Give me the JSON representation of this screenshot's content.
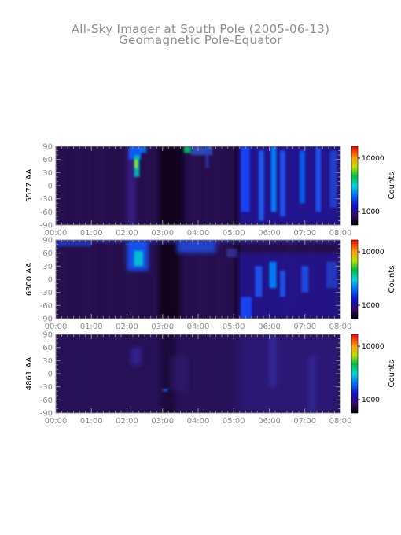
{
  "title": "All-Sky Imager at South Pole (2005-06-13)",
  "subtitle": "Geomagnetic Pole-Equator",
  "colors": {
    "background": "#2a1052",
    "text": "#8c8c8c"
  },
  "chart_data": [
    {
      "type": "heatmap",
      "ylabel": "5577 AA",
      "x_ticks": [
        "00:00",
        "01:00",
        "02:00",
        "03:00",
        "04:00",
        "05:00",
        "06:00",
        "07:00",
        "08:00"
      ],
      "y_ticks": [
        "90",
        "60",
        "30",
        "0",
        "-30",
        "-60",
        "-90"
      ],
      "xlim": [
        "00:00",
        "08:00"
      ],
      "ylim": [
        -90,
        90
      ],
      "colorbar": {
        "label": "Counts",
        "ticks": [
          "10000",
          "1000"
        ],
        "scale": "log"
      }
    },
    {
      "type": "heatmap",
      "ylabel": "6300 AA",
      "x_ticks": [
        "00:00",
        "01:00",
        "02:00",
        "03:00",
        "04:00",
        "05:00",
        "06:00",
        "07:00",
        "08:00"
      ],
      "y_ticks": [
        "90",
        "60",
        "30",
        "0",
        "-30",
        "-60",
        "-90"
      ],
      "xlim": [
        "00:00",
        "08:00"
      ],
      "ylim": [
        -90,
        90
      ],
      "colorbar": {
        "label": "Counts",
        "ticks": [
          "10000",
          "1000"
        ],
        "scale": "log"
      }
    },
    {
      "type": "heatmap",
      "ylabel": "4861 AA",
      "x_ticks": [
        "00:00",
        "01:00",
        "02:00",
        "03:00",
        "04:00",
        "05:00",
        "06:00",
        "07:00",
        "08:00"
      ],
      "y_ticks": [
        "90",
        "60",
        "30",
        "0",
        "-30",
        "-60",
        "-90"
      ],
      "xlim": [
        "00:00",
        "08:00"
      ],
      "ylim": [
        -90,
        90
      ],
      "colorbar": {
        "label": "Counts",
        "ticks": [
          "10000",
          "1000"
        ],
        "scale": "log"
      }
    }
  ]
}
